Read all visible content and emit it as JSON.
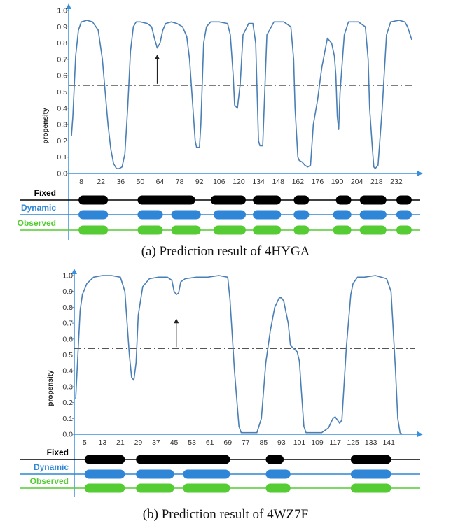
{
  "chart_data": [
    {
      "type": "line",
      "title": "",
      "caption": "(a) Prediction result of 4HYGA",
      "xlabel": "",
      "ylabel": "propensity",
      "xlim": [
        1,
        243
      ],
      "ylim": [
        0,
        1.0
      ],
      "yticks": [
        0.0,
        0.1,
        0.2,
        0.3,
        0.4,
        0.5,
        0.6,
        0.7,
        0.8,
        0.9,
        1.0
      ],
      "ytick_labels": [
        "0.0",
        "0.1",
        "0.2",
        "0.3",
        "0.4",
        "0.5",
        "0.6",
        "0.7",
        "0.8",
        "0.9",
        "1.0"
      ],
      "xtick_labels": [
        "8",
        "22",
        "36",
        "50",
        "64",
        "78",
        "92",
        "106",
        "120",
        "134",
        "148",
        "162",
        "176",
        "190",
        "204",
        "218",
        "232"
      ],
      "threshold": 0.54,
      "arrow": {
        "x": 62,
        "y_from": 0.55,
        "y_to": 0.73
      },
      "grid": false,
      "colors": {
        "line": "#4a7fb5",
        "threshold": "#555555",
        "axis": "#3a8fdd",
        "fixed": "#000000",
        "dynamic": "#2f86d6",
        "observed": "#55cc33"
      },
      "series": [
        {
          "x": [
            1,
            2,
            4,
            6,
            8,
            12,
            16,
            20,
            23,
            25,
            27,
            29,
            31,
            33,
            35,
            37,
            39,
            41,
            43,
            45,
            47,
            50,
            55,
            58,
            60,
            62,
            64,
            66,
            68,
            72,
            76,
            80,
            83,
            85,
            87,
            89,
            90,
            92,
            93,
            95,
            97,
            100,
            106,
            112,
            114,
            116,
            117,
            119,
            121,
            123,
            127,
            130,
            132,
            133,
            134,
            135,
            137,
            140,
            145,
            152,
            157,
            159,
            160,
            162,
            163,
            165,
            167,
            169,
            171,
            173,
            176,
            179,
            183,
            186,
            188,
            189,
            190,
            191,
            192,
            195,
            198,
            205,
            210,
            212,
            213,
            215,
            216,
            217,
            219,
            222,
            225,
            228,
            234,
            238,
            240,
            243
          ],
          "y": [
            0.23,
            0.35,
            0.72,
            0.88,
            0.93,
            0.94,
            0.93,
            0.88,
            0.7,
            0.5,
            0.3,
            0.15,
            0.06,
            0.03,
            0.03,
            0.04,
            0.12,
            0.4,
            0.75,
            0.9,
            0.93,
            0.93,
            0.92,
            0.9,
            0.83,
            0.77,
            0.8,
            0.88,
            0.92,
            0.93,
            0.92,
            0.9,
            0.84,
            0.7,
            0.45,
            0.2,
            0.16,
            0.16,
            0.3,
            0.8,
            0.9,
            0.93,
            0.93,
            0.92,
            0.85,
            0.6,
            0.42,
            0.4,
            0.55,
            0.85,
            0.92,
            0.92,
            0.8,
            0.5,
            0.2,
            0.17,
            0.17,
            0.85,
            0.93,
            0.93,
            0.9,
            0.7,
            0.4,
            0.1,
            0.08,
            0.07,
            0.05,
            0.04,
            0.05,
            0.3,
            0.45,
            0.65,
            0.83,
            0.8,
            0.72,
            0.6,
            0.35,
            0.27,
            0.5,
            0.85,
            0.93,
            0.93,
            0.9,
            0.7,
            0.4,
            0.15,
            0.04,
            0.03,
            0.05,
            0.4,
            0.85,
            0.93,
            0.94,
            0.93,
            0.9,
            0.82
          ]
        }
      ],
      "tracks": {
        "labels": [
          "Fixed",
          "Dynamic",
          "Observed"
        ],
        "fixed": [
          [
            6,
            27
          ],
          [
            48,
            89
          ],
          [
            100,
            125
          ],
          [
            130,
            150
          ],
          [
            159,
            170
          ],
          [
            189,
            200
          ],
          [
            206,
            225
          ],
          [
            232,
            243
          ]
        ],
        "dynamic": [
          [
            6,
            27
          ],
          [
            48,
            66
          ],
          [
            72,
            93
          ],
          [
            102,
            125
          ],
          [
            130,
            150
          ],
          [
            159,
            170
          ],
          [
            187,
            200
          ],
          [
            206,
            225
          ],
          [
            232,
            243
          ]
        ],
        "observed": [
          [
            6,
            27
          ],
          [
            48,
            66
          ],
          [
            72,
            93
          ],
          [
            102,
            125
          ],
          [
            130,
            150
          ],
          [
            159,
            170
          ],
          [
            187,
            200
          ],
          [
            206,
            225
          ],
          [
            232,
            243
          ]
        ]
      }
    },
    {
      "type": "line",
      "title": "",
      "caption": "(b) Prediction result of 4WZ7F",
      "xlabel": "",
      "ylabel": "propensity",
      "xlim": [
        1,
        150
      ],
      "ylim": [
        0,
        1.0
      ],
      "yticks": [
        0.0,
        0.1,
        0.2,
        0.3,
        0.4,
        0.5,
        0.6,
        0.7,
        0.8,
        0.9,
        1.0
      ],
      "ytick_labels": [
        "0.0",
        "0.1",
        "0.2",
        "0.3",
        "0.4",
        "0.5",
        "0.6",
        "0.7",
        "0.8",
        "0.9",
        "1.0"
      ],
      "xtick_labels": [
        "5",
        "13",
        "21",
        "29",
        "37",
        "45",
        "53",
        "61",
        "69",
        "77",
        "85",
        "93",
        "101",
        "109",
        "117",
        "125",
        "133",
        "141"
      ],
      "threshold": 0.54,
      "arrow": {
        "x": 46,
        "y_from": 0.55,
        "y_to": 0.73
      },
      "grid": false,
      "colors": {
        "line": "#4a7fb5",
        "threshold": "#555555",
        "axis": "#3a8fdd",
        "fixed": "#000000",
        "dynamic": "#2f86d6",
        "observed": "#55cc33"
      },
      "series": [
        {
          "x": [
            1,
            2,
            3,
            4,
            6,
            9,
            13,
            17,
            21,
            23,
            24,
            25,
            26,
            27,
            28,
            29,
            31,
            34,
            38,
            42,
            44,
            45,
            46,
            47,
            48,
            50,
            55,
            60,
            65,
            69,
            70,
            72,
            74,
            75,
            76,
            77,
            80,
            82,
            84,
            86,
            88,
            90,
            92,
            93,
            94,
            96,
            97,
            100,
            101,
            102,
            103,
            104,
            108,
            111,
            114,
            116,
            117,
            118,
            119,
            120,
            122,
            124,
            125,
            127,
            130,
            135,
            140,
            142,
            144,
            145,
            146,
            147
          ],
          "y": [
            0.22,
            0.5,
            0.78,
            0.88,
            0.95,
            0.99,
            1.0,
            1.0,
            0.99,
            0.9,
            0.7,
            0.5,
            0.36,
            0.34,
            0.45,
            0.75,
            0.93,
            0.98,
            0.99,
            0.99,
            0.97,
            0.9,
            0.88,
            0.89,
            0.96,
            0.98,
            0.99,
            0.99,
            1.0,
            0.99,
            0.85,
            0.4,
            0.05,
            0.01,
            0.01,
            0.01,
            0.01,
            0.01,
            0.1,
            0.45,
            0.65,
            0.8,
            0.86,
            0.86,
            0.84,
            0.7,
            0.56,
            0.52,
            0.46,
            0.25,
            0.05,
            0.01,
            0.01,
            0.01,
            0.04,
            0.1,
            0.11,
            0.09,
            0.07,
            0.09,
            0.55,
            0.88,
            0.95,
            0.99,
            0.99,
            1.0,
            0.98,
            0.9,
            0.4,
            0.1,
            0.01,
            0.0
          ]
        }
      ],
      "tracks": {
        "labels": [
          "Fixed",
          "Dynamic",
          "Observed"
        ],
        "fixed": [
          [
            5,
            23
          ],
          [
            28,
            70
          ],
          [
            86,
            94
          ],
          [
            124,
            142
          ]
        ],
        "dynamic": [
          [
            5,
            23
          ],
          [
            28,
            45
          ],
          [
            49,
            70
          ],
          [
            86,
            97
          ],
          [
            124,
            142
          ]
        ],
        "observed": [
          [
            5,
            23
          ],
          [
            28,
            45
          ],
          [
            49,
            70
          ],
          [
            86,
            97
          ],
          [
            124,
            142
          ]
        ]
      }
    }
  ]
}
